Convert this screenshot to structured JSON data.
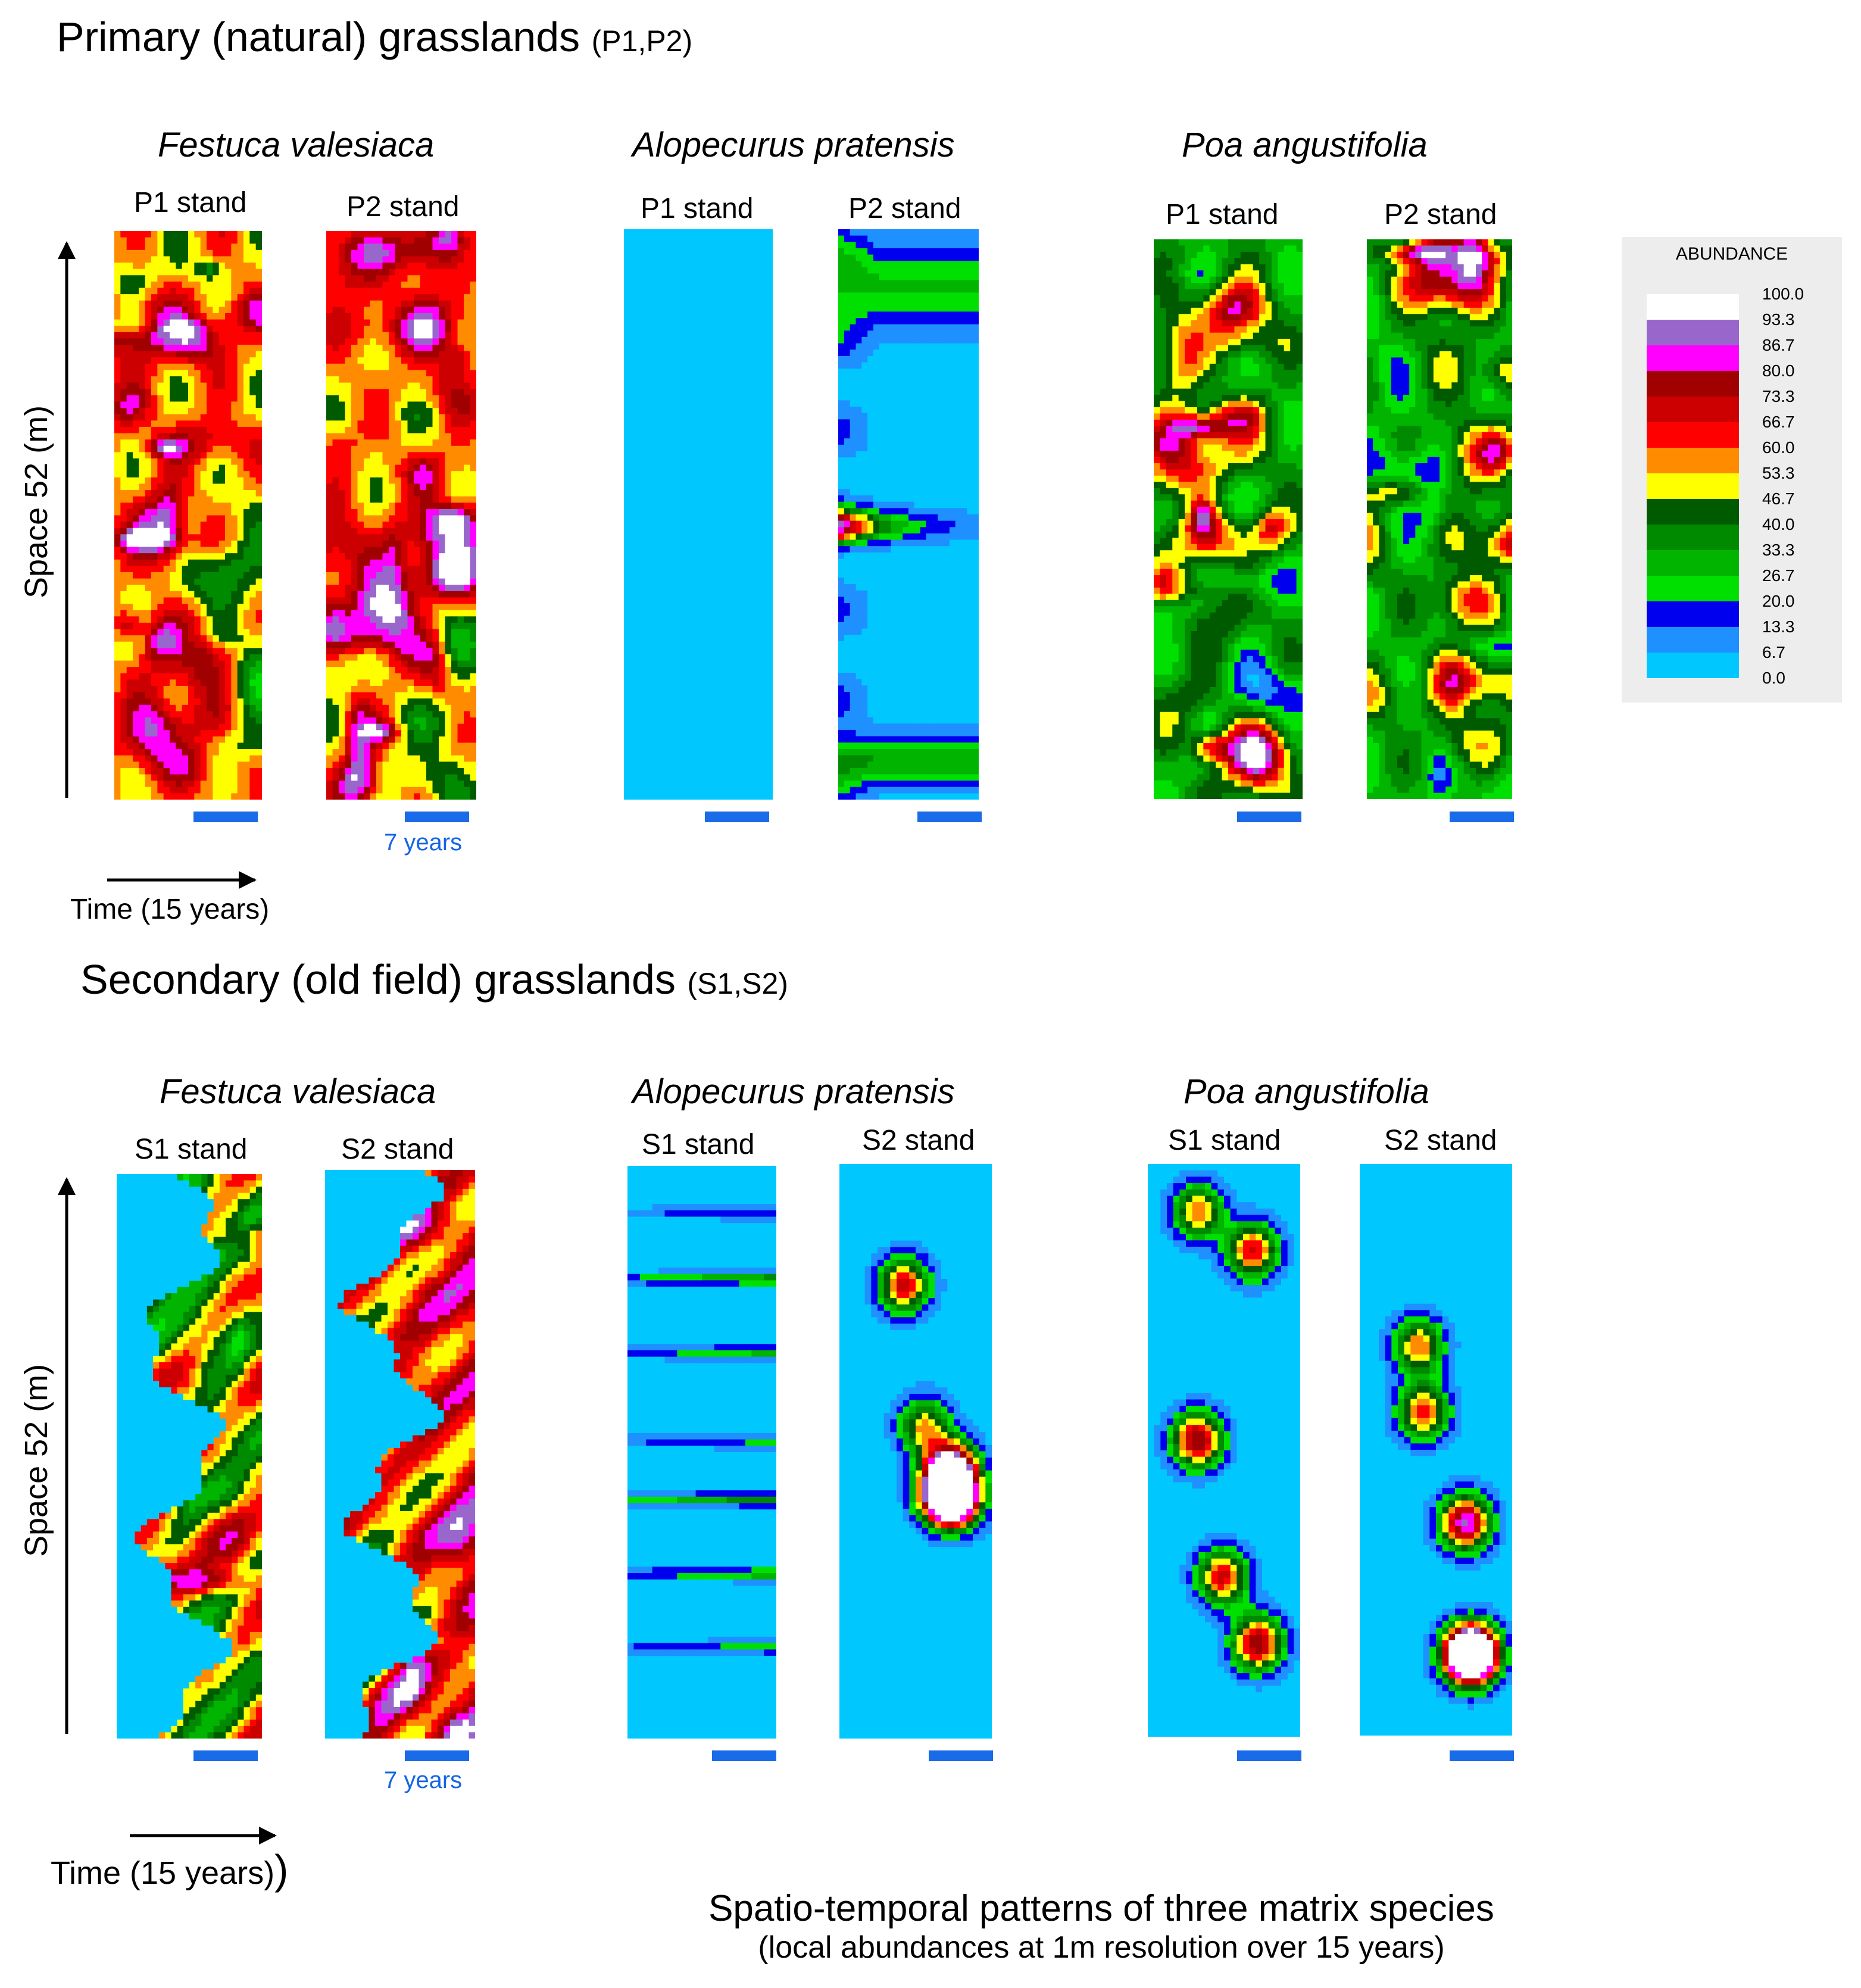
{
  "sections": [
    {
      "title": "Primary (natural) grasslands",
      "subtitle": "(P1,P2)",
      "ylabel": "Space 52 (m)",
      "time_label": "Time (15 years)",
      "scale_label": "7 years",
      "species": [
        {
          "name": "Festuca valesiaca",
          "stands": [
            "P1 stand",
            "P2 stand"
          ]
        },
        {
          "name": "Alopecurus pratensis",
          "stands": [
            "P1 stand",
            "P2 stand"
          ]
        },
        {
          "name": "Poa angustifolia",
          "stands": [
            "P1 stand",
            "P2 stand"
          ]
        }
      ]
    },
    {
      "title": "Secondary (old field) grasslands",
      "subtitle": "(S1,S2)",
      "ylabel": "Space 52 (m)",
      "time_label": "Time (15 years)",
      "scale_label": "7 years",
      "species": [
        {
          "name": "Festuca valesiaca",
          "stands": [
            "S1 stand",
            "S2 stand"
          ]
        },
        {
          "name": "Alopecurus pratensis",
          "stands": [
            "S1 stand",
            "S2 stand"
          ]
        },
        {
          "name": "Poa angustifolia",
          "stands": [
            "S1 stand",
            "S2 stand"
          ]
        }
      ]
    }
  ],
  "closing_paren": ")",
  "caption": {
    "line1": "Spatio-temporal patterns of three matrix species",
    "line2": "(local abundances at 1m resolution over 15 years)"
  },
  "legend": {
    "title": "ABUNDANCE",
    "values": [
      "100.0",
      "93.3",
      "86.7",
      "80.0",
      "73.3",
      "66.7",
      "60.0",
      "53.3",
      "46.7",
      "40.0",
      "33.3",
      "26.7",
      "20.0",
      "13.3",
      "6.7",
      "0.0"
    ],
    "colors": [
      "#ffffff",
      "#9966cc",
      "#ff00ff",
      "#a00000",
      "#cc0000",
      "#ff0000",
      "#ff8c00",
      "#ffff00",
      "#005a00",
      "#008a00",
      "#00b400",
      "#00e000",
      "#0000ee",
      "#1e90ff",
      "#00c8ff"
    ]
  },
  "chart_data": {
    "type": "heatmap",
    "title": "Spatio-temporal patterns of three matrix species",
    "xlabel": "Time (15 years)",
    "ylabel": "Space 52 (m)",
    "x_range": [
      0,
      15
    ],
    "y_range": [
      0,
      52
    ],
    "value_range": [
      0,
      100
    ],
    "panels": [
      {
        "section": "Primary (natural) grasslands",
        "species": "Festuca valesiaca",
        "stand": "P1 stand",
        "level": 55,
        "mode": "full"
      },
      {
        "section": "Primary (natural) grasslands",
        "species": "Festuca valesiaca",
        "stand": "P2 stand",
        "level": 55,
        "mode": "full"
      },
      {
        "section": "Primary (natural) grasslands",
        "species": "Alopecurus pratensis",
        "stand": "P1 stand",
        "level": 4,
        "mode": "stripes"
      },
      {
        "section": "Primary (natural) grasslands",
        "species": "Alopecurus pratensis",
        "stand": "P2 stand",
        "level": 12,
        "mode": "left"
      },
      {
        "section": "Primary (natural) grasslands",
        "species": "Poa angustifolia",
        "stand": "P1 stand",
        "level": 32,
        "mode": "full"
      },
      {
        "section": "Primary (natural) grasslands",
        "species": "Poa angustifolia",
        "stand": "P2 stand",
        "level": 30,
        "mode": "full"
      },
      {
        "section": "Secondary (old field) grasslands",
        "species": "Festuca valesiaca",
        "stand": "S1 stand",
        "level": 40,
        "mode": "right"
      },
      {
        "section": "Secondary (old field) grasslands",
        "species": "Festuca valesiaca",
        "stand": "S2 stand",
        "level": 55,
        "mode": "right"
      },
      {
        "section": "Secondary (old field) grasslands",
        "species": "Alopecurus pratensis",
        "stand": "S1 stand",
        "level": 30,
        "mode": "stripes"
      },
      {
        "section": "Secondary (old field) grasslands",
        "species": "Alopecurus pratensis",
        "stand": "S2 stand",
        "level": 25,
        "mode": "patches"
      },
      {
        "section": "Secondary (old field) grasslands",
        "species": "Poa angustifolia",
        "stand": "S1 stand",
        "level": 60,
        "mode": "patches"
      },
      {
        "section": "Secondary (old field) grasslands",
        "species": "Poa angustifolia",
        "stand": "S2 stand",
        "level": 45,
        "mode": "patches"
      }
    ]
  }
}
